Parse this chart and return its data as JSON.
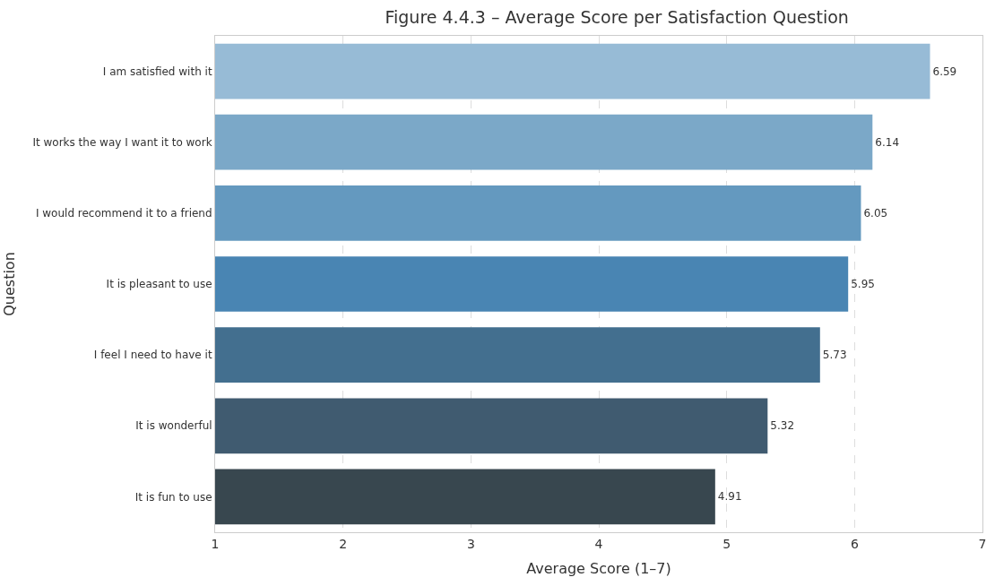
{
  "chart_data": {
    "type": "bar",
    "orientation": "horizontal",
    "title": "Figure 4.4.3 – Average Score per Satisfaction Question",
    "xlabel": "Average Score (1–7)",
    "ylabel": "Question",
    "categories": [
      "I am satisfied with it",
      "It works the way I want it to work",
      "I would recommend it to a friend",
      "It is pleasant to use",
      "I feel I need to have it",
      "It is wonderful",
      "It is fun to use"
    ],
    "values": [
      6.59,
      6.14,
      6.05,
      5.95,
      5.73,
      5.32,
      4.91
    ],
    "colors": [
      "#97bbd6",
      "#7ba8c8",
      "#6499bf",
      "#4985b3",
      "#436f8f",
      "#405b70",
      "#38474f"
    ],
    "xlim": [
      1,
      7
    ],
    "xticks": [
      1,
      2,
      3,
      4,
      5,
      6,
      7
    ],
    "grid": "x",
    "data_labels": true
  }
}
